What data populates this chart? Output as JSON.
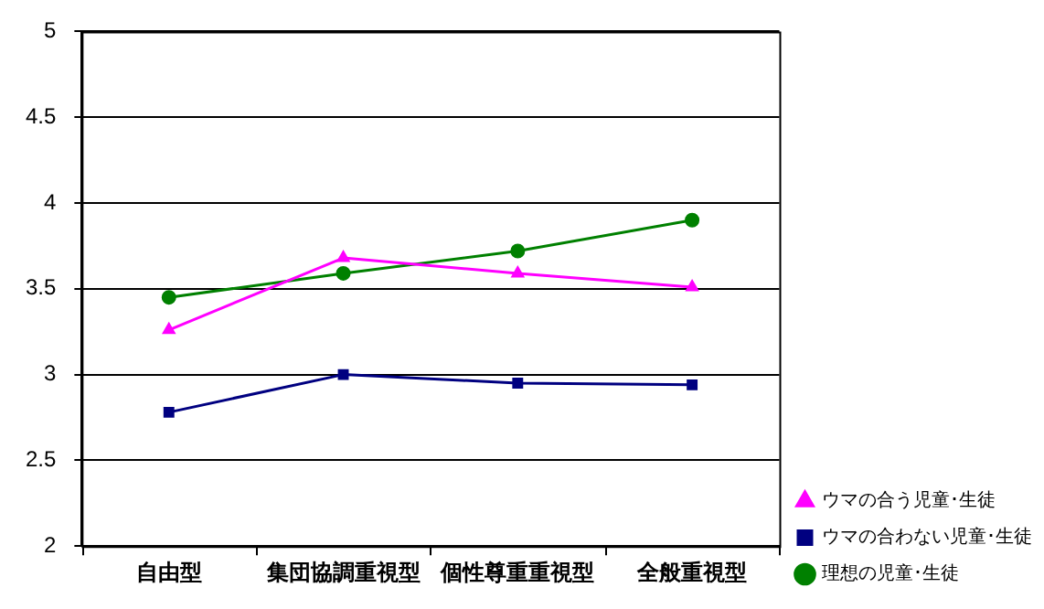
{
  "chart_data": {
    "type": "line",
    "categories": [
      "自由型",
      "集団協調重視型",
      "個性尊重重視型",
      "全般重視型"
    ],
    "series": [
      {
        "name": "ウマの合う児童･生徒",
        "color": "#ff00ff",
        "marker": "triangle",
        "values": [
          3.26,
          3.68,
          3.59,
          3.51
        ]
      },
      {
        "name": "ウマの合わない児童･生徒",
        "color": "#000080",
        "marker": "square",
        "values": [
          2.78,
          3.0,
          2.95,
          2.94
        ]
      },
      {
        "name": "理想の児童･生徒",
        "color": "#008000",
        "marker": "circle",
        "values": [
          3.45,
          3.59,
          3.72,
          3.9
        ]
      }
    ],
    "ylim": [
      2,
      5
    ],
    "yticks": [
      2,
      2.5,
      3,
      3.5,
      4,
      4.5,
      5
    ],
    "grid": "y",
    "legend": "bottom right",
    "line_style": "solid"
  }
}
